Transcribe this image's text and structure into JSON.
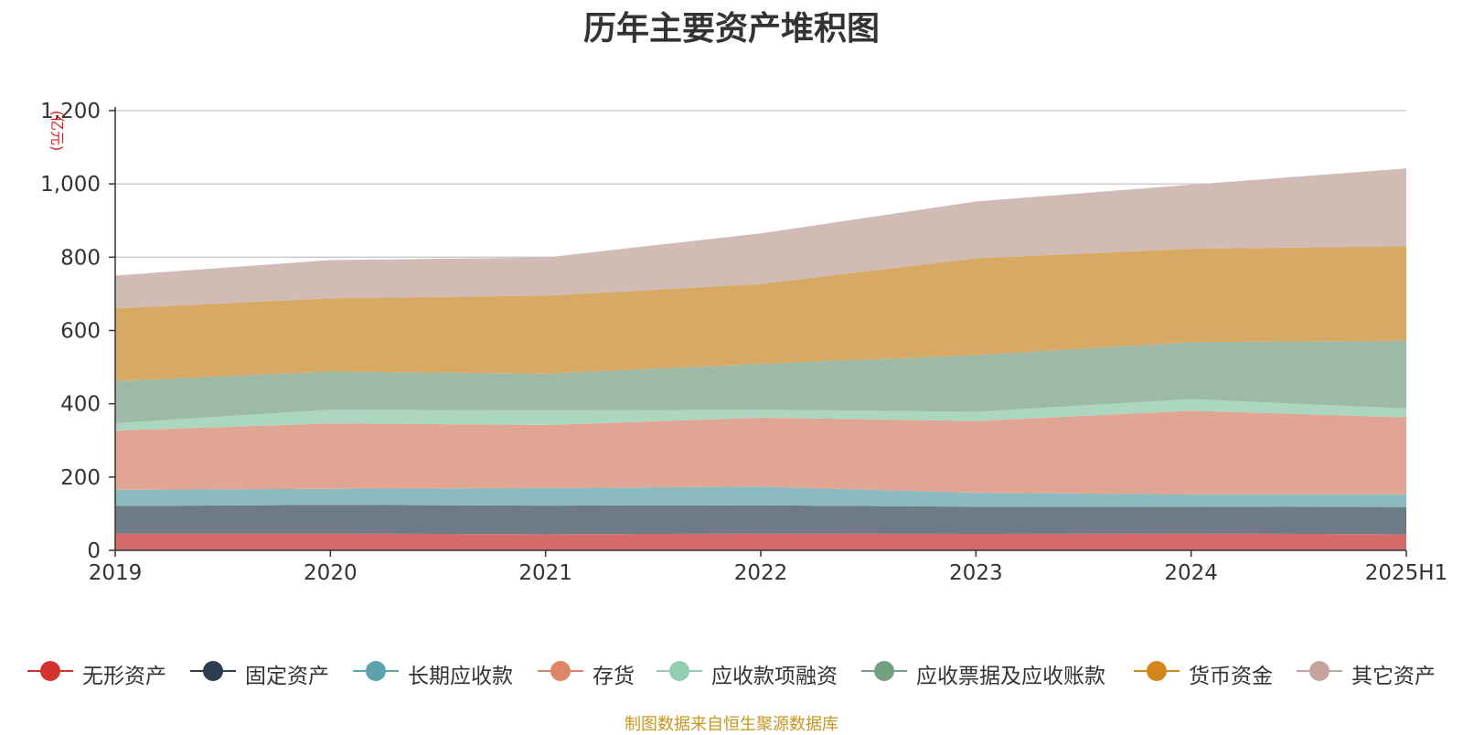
{
  "chart_data": {
    "type": "area",
    "stacked": true,
    "title": "历年主要资产堆积图",
    "ylabel": "(亿元)",
    "xlabel": "",
    "ylim": [
      0,
      1200
    ],
    "yticks": [
      "0",
      "200",
      "400",
      "600",
      "800",
      "1,000",
      "1,200"
    ],
    "categories": [
      "2019",
      "2020",
      "2021",
      "2022",
      "2023",
      "2024",
      "2025H1"
    ],
    "grid": true,
    "legend_position": "bottom",
    "series": [
      {
        "name": "无形资产",
        "color": "#d4322d",
        "fill": "#d46b68",
        "values": [
          46,
          46,
          44,
          46,
          45,
          46,
          44
        ]
      },
      {
        "name": "固定资产",
        "color": "#2c3e50",
        "fill": "#6e7b86",
        "values": [
          75,
          78,
          78,
          77,
          74,
          73,
          74
        ]
      },
      {
        "name": "长期应收款",
        "color": "#5da3ab",
        "fill": "#8bbac0",
        "values": [
          44,
          44,
          48,
          51,
          38,
          34,
          35
        ]
      },
      {
        "name": "存货",
        "color": "#dd8565",
        "fill": "#e0a693",
        "values": [
          162,
          178,
          172,
          188,
          196,
          228,
          210
        ]
      },
      {
        "name": "应收款项融资",
        "color": "#93cdb2",
        "fill": "#abd7c1",
        "values": [
          20,
          38,
          40,
          22,
          25,
          32,
          24
        ]
      },
      {
        "name": "应收票据及应收账款",
        "color": "#72a081",
        "fill": "#9eb9a6",
        "values": [
          115,
          104,
          100,
          125,
          155,
          155,
          185
        ]
      },
      {
        "name": "货币资金",
        "color": "#d4861d",
        "fill": "#d8a962",
        "values": [
          198,
          200,
          213,
          218,
          264,
          255,
          258
        ]
      },
      {
        "name": "其它资产",
        "color": "#c4a49b",
        "fill": "#d0bbb5",
        "values": [
          90,
          104,
          104,
          138,
          155,
          175,
          212
        ]
      }
    ]
  },
  "source_note": "制图数据来自恒生聚源数据库"
}
